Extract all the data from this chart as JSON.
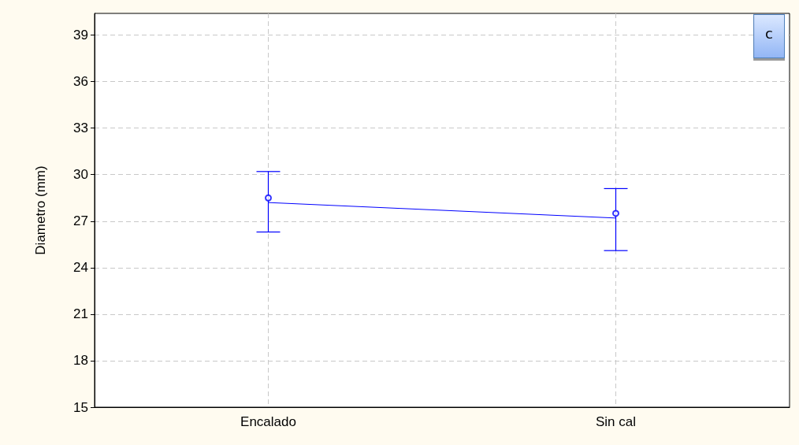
{
  "chart_data": {
    "type": "line",
    "ylabel": "Diametro (mm)",
    "categories": [
      "Encalado",
      "Sin cal"
    ],
    "series": [
      {
        "color": "#0000ff",
        "values": [
          28.2,
          27.2
        ],
        "errors": [
          [
            26.3,
            30.2
          ],
          [
            25.1,
            29.1
          ]
        ],
        "marker": "none"
      },
      {
        "type": "scatter",
        "color": "#0000ff",
        "x": [
          "Encalado",
          "Sin cal"
        ],
        "values": [
          28.5,
          27.5
        ],
        "marker": "circle"
      }
    ],
    "ylim": [
      15,
      40.4
    ],
    "yticks": [
      15,
      18,
      21,
      24,
      27,
      30,
      33,
      36,
      39
    ],
    "grid": true,
    "line_style": "solid",
    "annotations": [
      "c"
    ]
  }
}
